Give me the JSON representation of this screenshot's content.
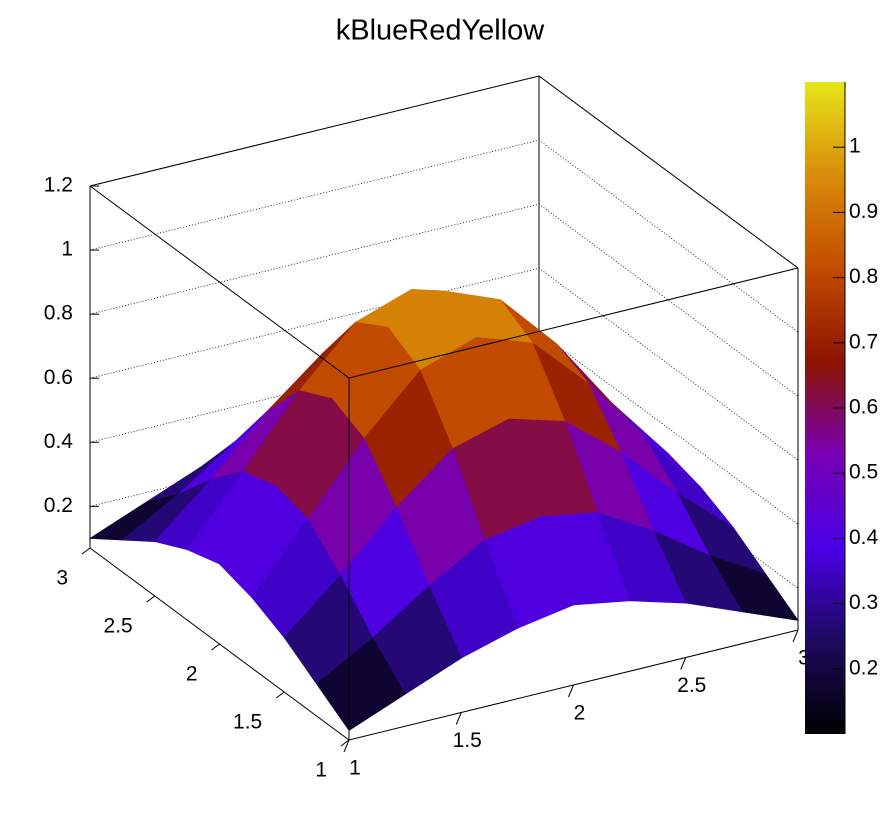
{
  "chart_data": {
    "type": "surface",
    "title": "kBlueRedYellow",
    "x": [
      1,
      1.25,
      1.5,
      1.75,
      2,
      2.25,
      2.5,
      2.75,
      3
    ],
    "y": [
      1,
      1.25,
      1.5,
      1.75,
      2,
      2.25,
      2.5,
      2.75,
      3
    ],
    "z": [
      [
        0.1,
        0.17,
        0.24,
        0.29,
        0.32,
        0.29,
        0.24,
        0.17,
        0.1
      ],
      [
        0.17,
        0.27,
        0.39,
        0.49,
        0.52,
        0.49,
        0.39,
        0.27,
        0.17
      ],
      [
        0.24,
        0.39,
        0.56,
        0.7,
        0.75,
        0.7,
        0.56,
        0.39,
        0.24
      ],
      [
        0.29,
        0.49,
        0.7,
        0.87,
        0.93,
        0.87,
        0.7,
        0.49,
        0.29
      ],
      [
        0.32,
        0.52,
        0.75,
        0.93,
        1.0,
        0.93,
        0.75,
        0.52,
        0.32
      ],
      [
        0.29,
        0.49,
        0.7,
        0.87,
        0.93,
        0.87,
        0.7,
        0.49,
        0.29
      ],
      [
        0.24,
        0.39,
        0.56,
        0.7,
        0.75,
        0.7,
        0.56,
        0.39,
        0.24
      ],
      [
        0.17,
        0.27,
        0.39,
        0.49,
        0.52,
        0.49,
        0.39,
        0.27,
        0.17
      ],
      [
        0.1,
        0.17,
        0.24,
        0.29,
        0.32,
        0.29,
        0.24,
        0.17,
        0.1
      ]
    ],
    "xlim": [
      1,
      3
    ],
    "ylim": [
      1,
      3
    ],
    "zlim": [
      0.07,
      1.2
    ],
    "xticks": [
      1,
      1.5,
      2,
      2.5,
      3
    ],
    "yticks": [
      1,
      1.5,
      2,
      2.5,
      3
    ],
    "zticks": [
      0.2,
      0.4,
      0.6,
      0.8,
      1,
      1.2
    ],
    "grid": true,
    "palette": [
      "#000000",
      "#1c0a5e",
      "#4a00e6",
      "#7800b4",
      "#8c1400",
      "#c24c00",
      "#d98c0a",
      "#e6e619"
    ],
    "color_range": [
      0.1,
      1.1
    ],
    "color_ticks": [
      0.2,
      0.3,
      0.4,
      0.5,
      0.6,
      0.7,
      0.8,
      0.9,
      1
    ]
  }
}
